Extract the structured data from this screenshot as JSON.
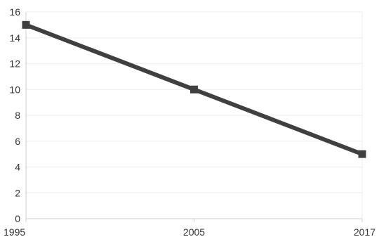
{
  "chart_data": {
    "type": "line",
    "title": "",
    "xlabel": "",
    "ylabel": "",
    "categories": [
      "1995",
      "2005",
      "2017"
    ],
    "series": [
      {
        "values": [
          15,
          10,
          5
        ],
        "color": "#404040"
      }
    ],
    "ylim": [
      0,
      16
    ],
    "yticks": [
      "0",
      "2",
      "4",
      "6",
      "8",
      "10",
      "12",
      "14",
      "16"
    ],
    "grid": true,
    "legend": "none",
    "marker": "square"
  }
}
